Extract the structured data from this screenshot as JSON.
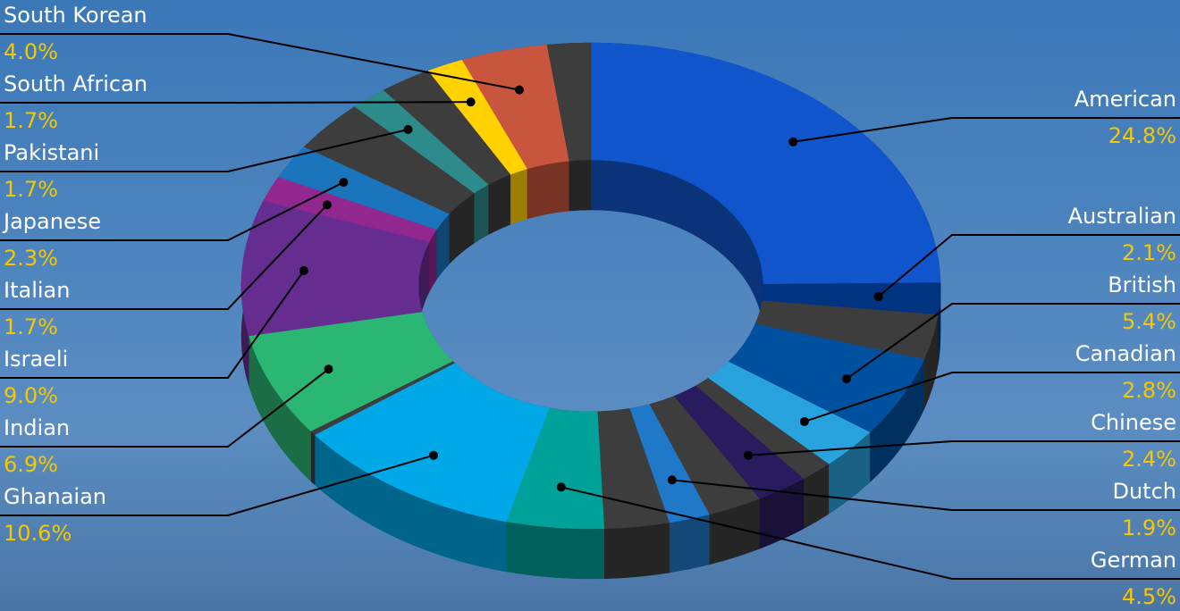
{
  "chart_data": {
    "type": "donut",
    "categories": [
      "American",
      "Australian",
      null,
      "British",
      "Canadian",
      null,
      "Chinese",
      null,
      "Dutch",
      null,
      "German",
      "Ghanaian",
      null,
      "Indian",
      "Israeli",
      "Italian",
      "Japanese",
      null,
      "Pakistani",
      null,
      "South African",
      "South Korean",
      null
    ],
    "values": [
      24.8,
      2.1,
      3.0,
      5.4,
      2.8,
      1.5,
      2.4,
      2.5,
      1.9,
      3.0,
      4.5,
      10.6,
      0.3,
      6.9,
      9.0,
      1.7,
      2.3,
      3.5,
      1.7,
      2.4,
      1.7,
      4.0,
      2.0
    ],
    "value_labels": [
      "24.8%",
      "2.1%",
      null,
      "5.4%",
      "2.8%",
      null,
      "2.4%",
      null,
      "1.9%",
      null,
      "4.5%",
      "10.6%",
      null,
      "6.9%",
      "9.0%",
      "1.7%",
      "2.3%",
      null,
      "1.7%",
      null,
      "1.7%",
      "4.0%",
      null
    ],
    "colors": [
      "#1155cc",
      "#003380",
      "#3d3d3d",
      "#0050a0",
      "#29a3dd",
      "#3d3d3d",
      "#2a1a5e",
      "#3d3d3d",
      "#1f78c8",
      "#3d3d3d",
      "#00a19a",
      "#00a8e8",
      "#3d3d3d",
      "#2bb673",
      "#662d91",
      "#92278f",
      "#1b75bc",
      "#3d3d3d",
      "#2e8b8b",
      "#3d3d3d",
      "#ffd200",
      "#c8553d",
      "#3d3d3d"
    ]
  }
}
